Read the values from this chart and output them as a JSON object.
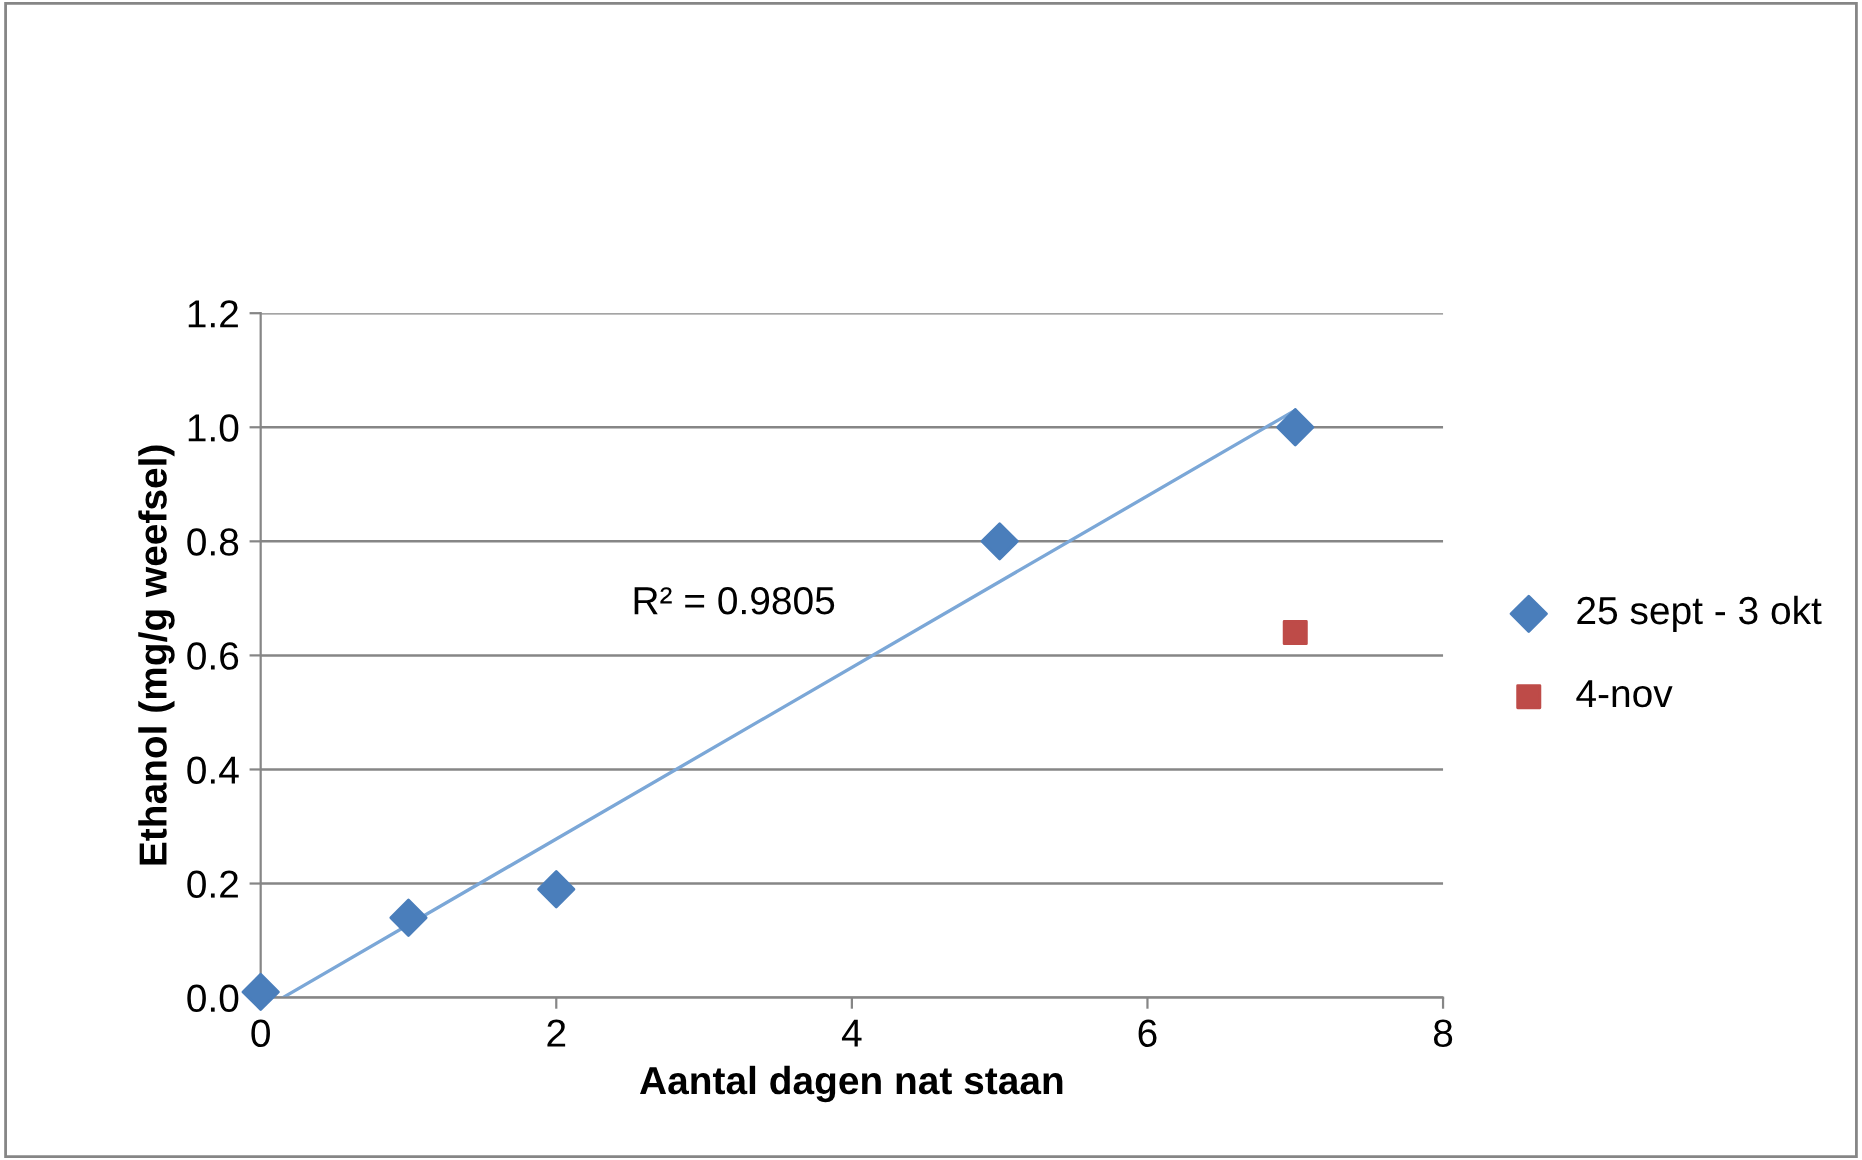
{
  "chart_data": {
    "type": "scatter",
    "xlabel": "Aantal dagen nat staan",
    "ylabel": "Ethanol (mg/g weefsel)",
    "xlim": [
      0,
      8
    ],
    "xticks": [
      0,
      2,
      4,
      6,
      8
    ],
    "ylim": [
      0,
      1.2
    ],
    "yticks": [
      {
        "value": 0,
        "label": "0.0"
      },
      {
        "value": 0.2,
        "label": "0.2"
      },
      {
        "value": 0.4,
        "label": "0.4"
      },
      {
        "value": 0.6,
        "label": "0.6"
      },
      {
        "value": 0.8,
        "label": "0.8"
      },
      {
        "value": 1.0,
        "label": "1.0"
      },
      {
        "value": 1.2,
        "label": "1.2"
      }
    ],
    "grid": "y",
    "legend": "right",
    "annotations": [
      "R² = 0.9805"
    ],
    "series": [
      {
        "name": "25 sept - 3 okt",
        "color": "#4a7ebb",
        "marker": "diamond",
        "x": [
          0,
          1,
          2,
          5,
          7
        ],
        "values": [
          0.01,
          0.14,
          0.19,
          0.8,
          1.0
        ]
      },
      {
        "name": "4-nov",
        "color": "#be4b48",
        "marker": "square",
        "x": [
          7
        ],
        "values": [
          0.64
        ]
      },
      {
        "type": "line",
        "color": "#7ba7d7",
        "marker": "none",
        "x": [
          0.15,
          7
        ],
        "values": [
          0,
          1.03
        ]
      }
    ]
  }
}
